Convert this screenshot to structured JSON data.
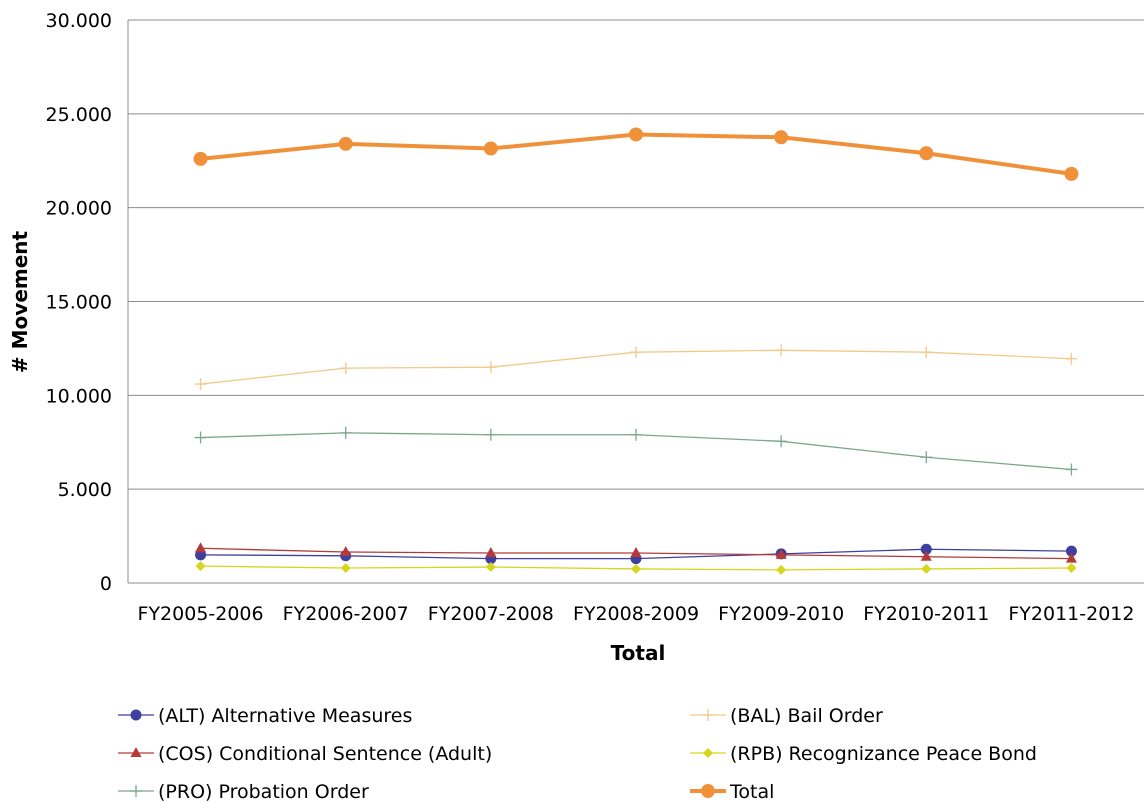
{
  "chart_data": {
    "type": "line",
    "categories": [
      "FY2005-2006",
      "FY2006-2007",
      "FY2007-2008",
      "FY2008-2009",
      "FY2009-2010",
      "FY2010-2011",
      "FY2011-2012"
    ],
    "xlabel": "Total",
    "ylabel": "# Movement",
    "ylim": [
      0,
      30000
    ],
    "yticks": [
      0,
      5000,
      10000,
      15000,
      20000,
      25000,
      30000
    ],
    "ytick_labels": [
      "0",
      "5.000",
      "10.000",
      "15.000",
      "20.000",
      "25.000",
      "30.000"
    ],
    "grid": true,
    "legend_position": "bottom",
    "series": [
      {
        "name": "(ALT) Alternative Measures",
        "values": [
          1500,
          1450,
          1300,
          1300,
          1550,
          1800,
          1700
        ],
        "color": "#3f3f9f",
        "marker": "circle"
      },
      {
        "name": "(BAL) Bail Order",
        "values": [
          10600,
          11450,
          11500,
          12300,
          12400,
          12300,
          11950
        ],
        "color": "#f2c98a",
        "marker": "plus"
      },
      {
        "name": "(COS) Conditional Sentence (Adult)",
        "values": [
          1850,
          1650,
          1600,
          1600,
          1500,
          1400,
          1300
        ],
        "color": "#b33a3a",
        "marker": "triangle"
      },
      {
        "name": "(RPB) Recognizance Peace Bond",
        "values": [
          900,
          800,
          850,
          750,
          700,
          750,
          800
        ],
        "color": "#d6d61e",
        "marker": "diamond"
      },
      {
        "name": "(PRO) Probation Order",
        "values": [
          7750,
          8000,
          7900,
          7900,
          7550,
          6700,
          6050
        ],
        "color": "#7aa88a",
        "marker": "plus"
      },
      {
        "name": "Total",
        "values": [
          22600,
          23400,
          23150,
          23900,
          23750,
          22900,
          21800
        ],
        "color": "#f0913a",
        "marker": "circle"
      }
    ]
  }
}
